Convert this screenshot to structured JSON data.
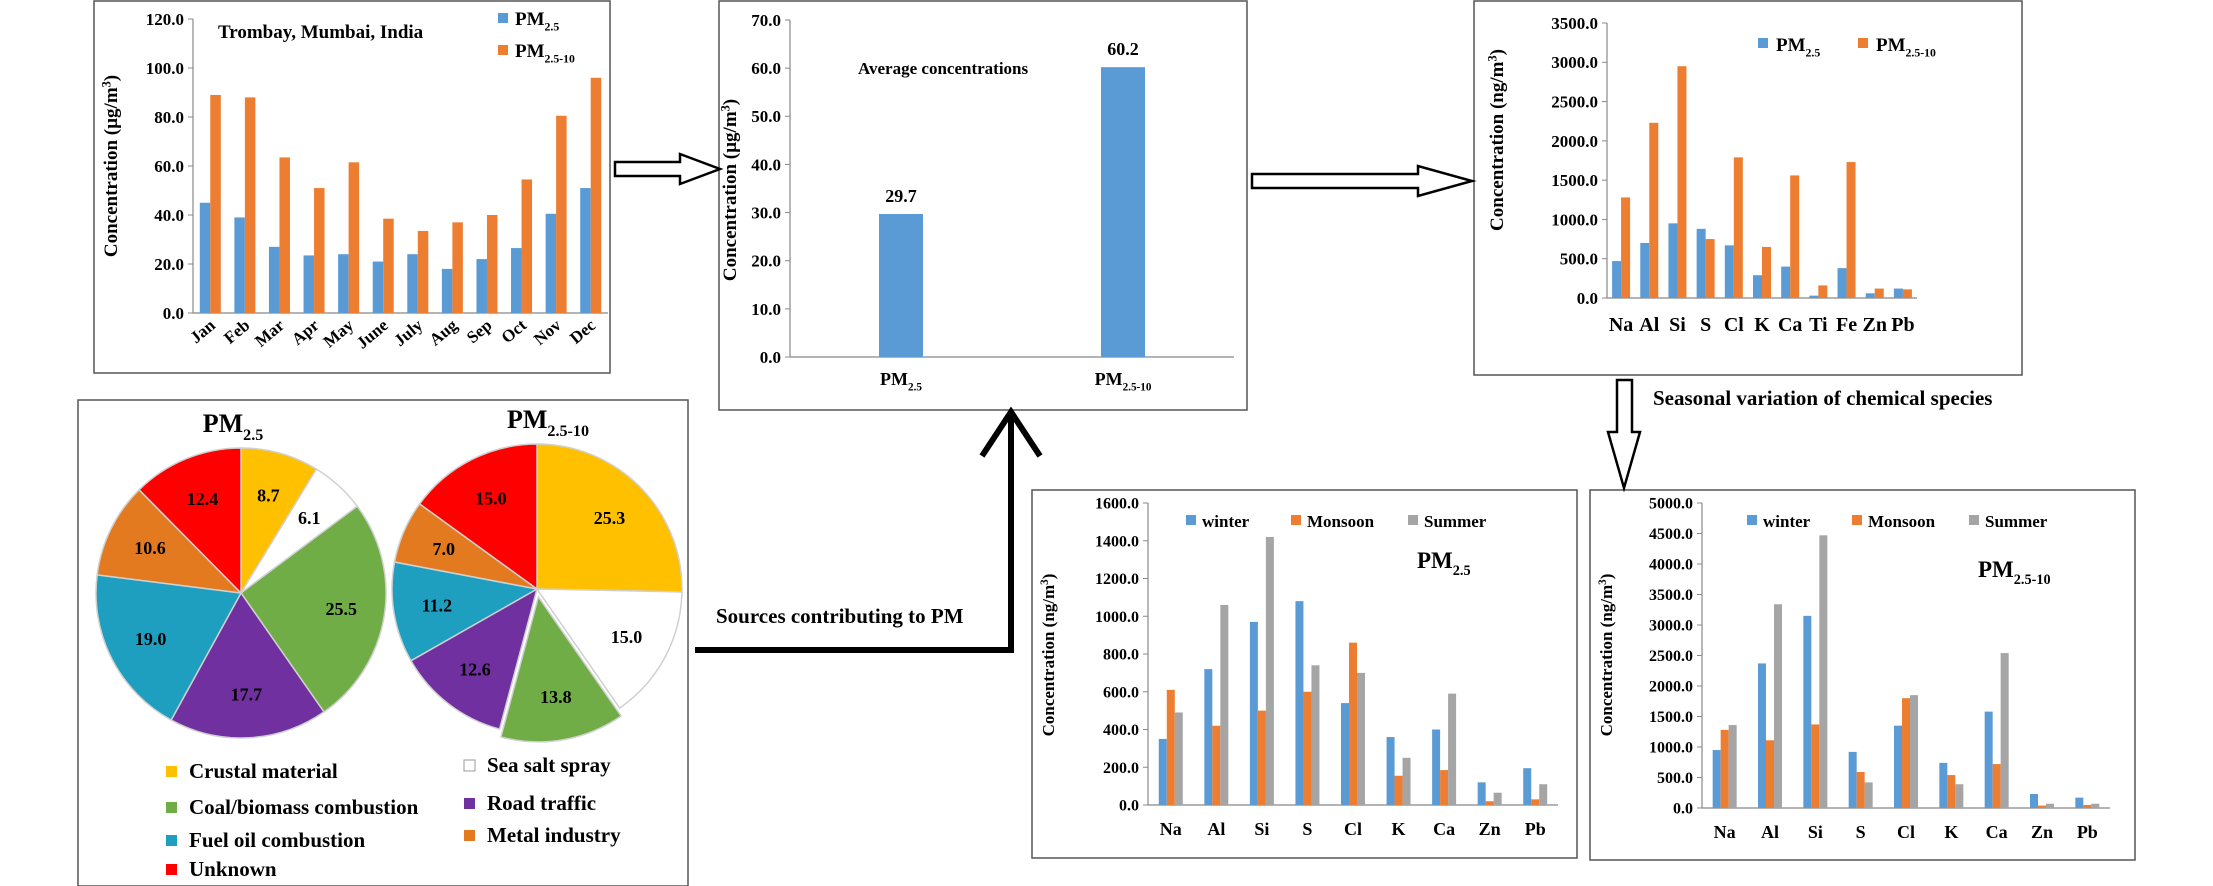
{
  "colors": {
    "pm25": "#5B9BD5",
    "pm2510": "#ED7D31",
    "winter": "#5B9BD5",
    "monsoon": "#ED7D31",
    "summer": "#A5A5A5",
    "crustal": "#FFC000",
    "seasalt": "#FFFFFF",
    "coal": "#70AD47",
    "road": "#7030A0",
    "fueloil": "#1F9FC0",
    "metal": "#E47A20",
    "unknown": "#FF0000"
  },
  "labels": {
    "pm": "PM",
    "sub25": "2.5",
    "sub2510": "2.5-10",
    "conc_ug": "Concentration (µg/m",
    "conc_ng": "Concentration (ng/m",
    "cube": "3",
    "close": ")",
    "seasonal_caption": "Seasonal variation of chemical species",
    "sources_caption": "Sources contributing to PM"
  },
  "chart_data": [
    {
      "id": "monthly",
      "type": "bar",
      "title": "Trombay, Mumbai, India",
      "ylabel": "Concentration (µg/m3)",
      "ylim": [
        0,
        120
      ],
      "yticks": [
        "0.0",
        "20.0",
        "40.0",
        "60.0",
        "80.0",
        "100.0",
        "120.0"
      ],
      "categories": [
        "Jan",
        "Feb",
        "Mar",
        "Apr",
        "May",
        "June",
        "July",
        "Aug",
        "Sep",
        "Oct",
        "Nov",
        "Dec"
      ],
      "series": [
        {
          "name": "PM2.5",
          "values": [
            45,
            39,
            27,
            23.5,
            24,
            21,
            24,
            18,
            22,
            26.5,
            40.5,
            51
          ]
        },
        {
          "name": "PM2.5-10",
          "values": [
            89,
            88,
            63.5,
            51,
            61.5,
            38.5,
            33.5,
            37,
            40,
            54.5,
            80.5,
            96
          ]
        }
      ],
      "legend": "top-right"
    },
    {
      "id": "average",
      "type": "bar",
      "title": "Average  concentrations",
      "ylabel": "Concentration (µg/m3)",
      "ylim": [
        0,
        70
      ],
      "yticks": [
        "0.0",
        "10.0",
        "20.0",
        "30.0",
        "40.0",
        "50.0",
        "60.0",
        "70.0"
      ],
      "categories": [
        "PM2.5",
        "PM2.5-10"
      ],
      "values": [
        29.7,
        60.2
      ],
      "value_labels": [
        "29.7",
        "60.2"
      ]
    },
    {
      "id": "species",
      "type": "bar",
      "ylabel": "Concentration (ng/m3)",
      "ylim": [
        0,
        3500
      ],
      "yticks": [
        "0.0",
        "500.0",
        "1000.0",
        "1500.0",
        "2000.0",
        "2500.0",
        "3000.0",
        "3500.0"
      ],
      "categories": [
        "Na",
        "Al",
        "Si",
        "S",
        "Cl",
        "K",
        "Ca",
        "Ti",
        "Fe",
        "Zn",
        "Pb"
      ],
      "series": [
        {
          "name": "PM2.5",
          "values": [
            470,
            700,
            950,
            880,
            670,
            290,
            400,
            30,
            380,
            60,
            120
          ]
        },
        {
          "name": "PM2.5-10",
          "values": [
            1280,
            2230,
            2950,
            750,
            1790,
            650,
            1560,
            160,
            1730,
            120,
            110
          ]
        }
      ],
      "legend": "top"
    },
    {
      "id": "seasonal_pm25",
      "type": "bar",
      "title": "PM2.5",
      "ylabel": "Concentration (ng/m3)",
      "ylim": [
        0,
        1600
      ],
      "yticks": [
        "0.0",
        "200.0",
        "400.0",
        "600.0",
        "800.0",
        "1000.0",
        "1200.0",
        "1400.0",
        "1600.0"
      ],
      "categories": [
        "Na",
        "Al",
        "Si",
        "S",
        "Cl",
        "K",
        "Ca",
        "Zn",
        "Pb"
      ],
      "series": [
        {
          "name": "winter",
          "values": [
            350,
            720,
            970,
            1080,
            540,
            360,
            400,
            120,
            195
          ]
        },
        {
          "name": "Monsoon",
          "values": [
            610,
            420,
            500,
            600,
            860,
            155,
            185,
            20,
            30
          ]
        },
        {
          "name": "Summer",
          "values": [
            490,
            1060,
            1420,
            740,
            700,
            250,
            590,
            65,
            110
          ]
        }
      ],
      "legend": "top"
    },
    {
      "id": "seasonal_pm2510",
      "type": "bar",
      "title": "PM2.5-10",
      "ylabel": "Concentration (ng/m3)",
      "ylim": [
        0,
        5000
      ],
      "yticks": [
        "0.0",
        "500.0",
        "1000.0",
        "1500.0",
        "2000.0",
        "2500.0",
        "3000.0",
        "3500.0",
        "4000.0",
        "4500.0",
        "5000.0"
      ],
      "categories": [
        "Na",
        "Al",
        "Si",
        "S",
        "Cl",
        "K",
        "Ca",
        "Zn",
        "Pb"
      ],
      "series": [
        {
          "name": "winter",
          "values": [
            950,
            2370,
            3150,
            920,
            1350,
            740,
            1580,
            230,
            170
          ]
        },
        {
          "name": "Monsoon",
          "values": [
            1280,
            1110,
            1370,
            590,
            1800,
            540,
            720,
            40,
            50
          ]
        },
        {
          "name": "Summer",
          "values": [
            1360,
            3340,
            4470,
            420,
            1850,
            390,
            2540,
            70,
            70
          ]
        }
      ],
      "legend": "top"
    },
    {
      "id": "pie_pm25",
      "type": "pie",
      "title": "PM2.5",
      "slices": [
        {
          "label": "Crustal material",
          "value": 8.7,
          "text": "8.7",
          "color_key": "crustal"
        },
        {
          "label": "Sea salt spray",
          "value": 6.1,
          "text": "6.1",
          "color_key": "seasalt"
        },
        {
          "label": "Coal/biomass combustion",
          "value": 25.5,
          "text": "25.5",
          "color_key": "coal"
        },
        {
          "label": "Road traffic",
          "value": 17.7,
          "text": "17.7",
          "color_key": "road"
        },
        {
          "label": "Fuel oil combustion",
          "value": 19.0,
          "text": "19.0",
          "color_key": "fueloil"
        },
        {
          "label": "Metal industry",
          "value": 10.6,
          "text": "10.6",
          "color_key": "metal"
        },
        {
          "label": "Unknown",
          "value": 12.4,
          "text": "12.4",
          "color_key": "unknown"
        }
      ]
    },
    {
      "id": "pie_pm2510",
      "type": "pie",
      "title": "PM2.5-10",
      "slices": [
        {
          "label": "Crustal material",
          "value": 25.3,
          "text": "25.3",
          "color_key": "crustal"
        },
        {
          "label": "Sea salt spray",
          "value": 15.0,
          "text": "15.0",
          "color_key": "seasalt"
        },
        {
          "label": "Coal/biomass combustion",
          "value": 13.8,
          "text": "13.8",
          "color_key": "coal"
        },
        {
          "label": "Road traffic",
          "value": 12.6,
          "text": "12.6",
          "color_key": "road"
        },
        {
          "label": "Fuel oil combustion",
          "value": 11.2,
          "text": "11.2",
          "color_key": "fueloil"
        },
        {
          "label": "Metal industry",
          "value": 7.0,
          "text": "7.0",
          "color_key": "metal"
        },
        {
          "label": "Unknown",
          "value": 15.0,
          "text": "15.0",
          "color_key": "unknown"
        }
      ]
    }
  ],
  "pie_legend": [
    {
      "label": "Crustal material",
      "color_key": "crustal"
    },
    {
      "label": "Sea salt spray",
      "color_key": "seasalt"
    },
    {
      "label": "Coal/biomass combustion",
      "color_key": "coal"
    },
    {
      "label": "Road traffic",
      "color_key": "road"
    },
    {
      "label": "Fuel oil combustion",
      "color_key": "fueloil"
    },
    {
      "label": "Metal industry",
      "color_key": "metal"
    },
    {
      "label": "Unknown",
      "color_key": "unknown"
    }
  ]
}
